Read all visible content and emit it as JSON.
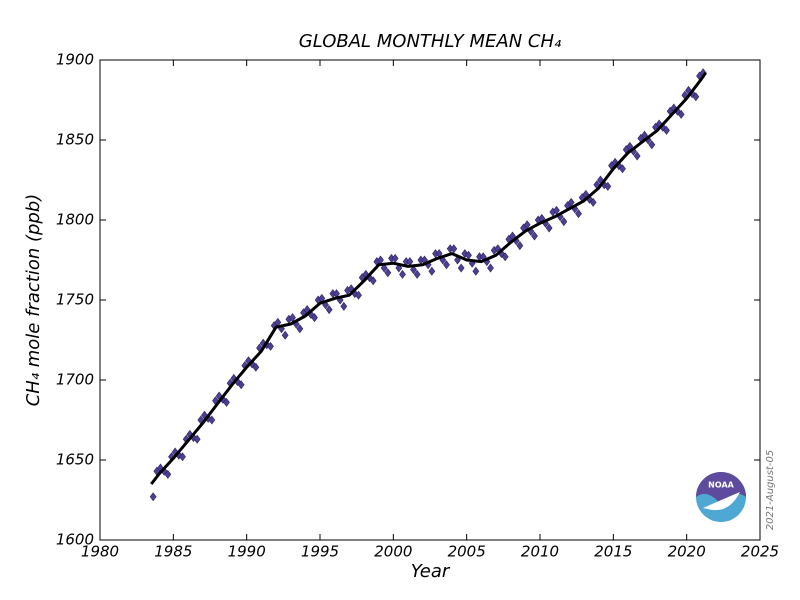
{
  "chart_data": {
    "type": "scatter",
    "title": "GLOBAL MONTHLY MEAN CH₄",
    "x_label": "Year",
    "y_label": "CH₄ mole fraction (ppb)",
    "annotation": "2021-August-05",
    "logo_text": "NOAA",
    "xlim": [
      1980,
      2025
    ],
    "xticks": [
      1980,
      1985,
      1990,
      1995,
      2000,
      2005,
      2010,
      2015,
      2020,
      2025
    ],
    "ylim": [
      1600,
      1900
    ],
    "yticks": [
      1600,
      1650,
      1700,
      1750,
      1800,
      1850,
      1900
    ],
    "series": [
      {
        "color": "#4f3f92",
        "x": [
          1983.625,
          1983.875,
          1984.125,
          1984.375,
          1984.625,
          1984.875,
          1985.125,
          1985.375,
          1985.625,
          1985.875,
          1986.125,
          1986.375,
          1986.625,
          1986.875,
          1987.125,
          1987.375,
          1987.625,
          1987.875,
          1988.125,
          1988.375,
          1988.625,
          1988.875,
          1989.125,
          1989.375,
          1989.625,
          1989.875,
          1990.125,
          1990.375,
          1990.625,
          1990.875,
          1991.125,
          1991.375,
          1991.625,
          1991.875,
          1992.125,
          1992.375,
          1992.625,
          1992.875,
          1993.125,
          1993.375,
          1993.625,
          1993.875,
          1994.125,
          1994.375,
          1994.625,
          1994.875,
          1995.125,
          1995.375,
          1995.625,
          1995.875,
          1996.125,
          1996.375,
          1996.625,
          1996.875,
          1997.125,
          1997.375,
          1997.625,
          1997.875,
          1998.125,
          1998.375,
          1998.625,
          1998.875,
          1999.125,
          1999.375,
          1999.625,
          1999.875,
          2000.125,
          2000.375,
          2000.625,
          2000.875,
          2001.125,
          2001.375,
          2001.625,
          2001.875,
          2002.125,
          2002.375,
          2002.625,
          2002.875,
          2003.125,
          2003.375,
          2003.625,
          2003.875,
          2004.125,
          2004.375,
          2004.625,
          2004.875,
          2005.125,
          2005.375,
          2005.625,
          2005.875,
          2006.125,
          2006.375,
          2006.625,
          2006.875,
          2007.125,
          2007.375,
          2007.625,
          2007.875,
          2008.125,
          2008.375,
          2008.625,
          2008.875,
          2009.125,
          2009.375,
          2009.625,
          2009.875,
          2010.125,
          2010.375,
          2010.625,
          2010.875,
          2011.125,
          2011.375,
          2011.625,
          2011.875,
          2012.125,
          2012.375,
          2012.625,
          2012.875,
          2013.125,
          2013.375,
          2013.625,
          2013.875,
          2014.125,
          2014.375,
          2014.625,
          2014.875,
          2015.125,
          2015.375,
          2015.625,
          2015.875,
          2016.125,
          2016.375,
          2016.625,
          2016.875,
          2017.125,
          2017.375,
          2017.625,
          2017.875,
          2018.125,
          2018.375,
          2018.625,
          2018.875,
          2019.125,
          2019.375,
          2019.625,
          2019.875,
          2020.125,
          2020.375,
          2020.625,
          2020.875,
          2021.125
        ],
        "values": [
          1627,
          1643,
          1645,
          1643,
          1641,
          1652,
          1655,
          1653,
          1652,
          1663,
          1666,
          1664,
          1663,
          1675,
          1678,
          1676,
          1675,
          1687,
          1690,
          1688,
          1686,
          1698,
          1701,
          1699,
          1697,
          1709,
          1712,
          1710,
          1708,
          1720,
          1723,
          1722,
          1721,
          1734,
          1736,
          1732,
          1728,
          1738,
          1739,
          1735,
          1732,
          1742,
          1744,
          1741,
          1739,
          1750,
          1751,
          1747,
          1744,
          1754,
          1754,
          1750,
          1746,
          1756,
          1757,
          1754,
          1753,
          1764,
          1766,
          1764,
          1762,
          1774,
          1775,
          1770,
          1767,
          1776,
          1776,
          1770,
          1766,
          1774,
          1774,
          1769,
          1766,
          1775,
          1775,
          1772,
          1768,
          1779,
          1779,
          1775,
          1772,
          1782,
          1782,
          1775,
          1770,
          1779,
          1778,
          1773,
          1768,
          1777,
          1777,
          1774,
          1770,
          1781,
          1782,
          1779,
          1777,
          1788,
          1790,
          1787,
          1784,
          1795,
          1797,
          1793,
          1790,
          1800,
          1801,
          1798,
          1795,
          1805,
          1806,
          1802,
          1799,
          1809,
          1811,
          1807,
          1804,
          1814,
          1816,
          1813,
          1811,
          1822,
          1825,
          1822,
          1821,
          1834,
          1836,
          1834,
          1832,
          1844,
          1846,
          1843,
          1840,
          1851,
          1853,
          1850,
          1847,
          1858,
          1860,
          1858,
          1856,
          1868,
          1870,
          1868,
          1866,
          1878,
          1881,
          1879,
          1877,
          1890,
          1892
        ]
      },
      {
        "color": "#000000",
        "x": [
          1983.5,
          1984,
          1985,
          1986,
          1987,
          1988,
          1989,
          1990,
          1991,
          1992,
          1993,
          1994,
          1995,
          1996,
          1997,
          1998,
          1999,
          2000,
          2001,
          2002,
          2003,
          2004,
          2005,
          2006,
          2007,
          2008,
          2009,
          2010,
          2011,
          2012,
          2013,
          2014,
          2015,
          2016,
          2017,
          2018,
          2019,
          2020,
          2021,
          2021.3
        ],
        "values": [
          1635,
          1641,
          1651,
          1662,
          1673,
          1685,
          1697,
          1708,
          1718,
          1733,
          1735,
          1740,
          1748,
          1751,
          1753,
          1762,
          1772,
          1773,
          1771,
          1772,
          1776,
          1779,
          1775,
          1774,
          1778,
          1786,
          1793,
          1798,
          1802,
          1807,
          1812,
          1820,
          1832,
          1842,
          1849,
          1856,
          1866,
          1876,
          1888,
          1892
        ]
      }
    ]
  }
}
